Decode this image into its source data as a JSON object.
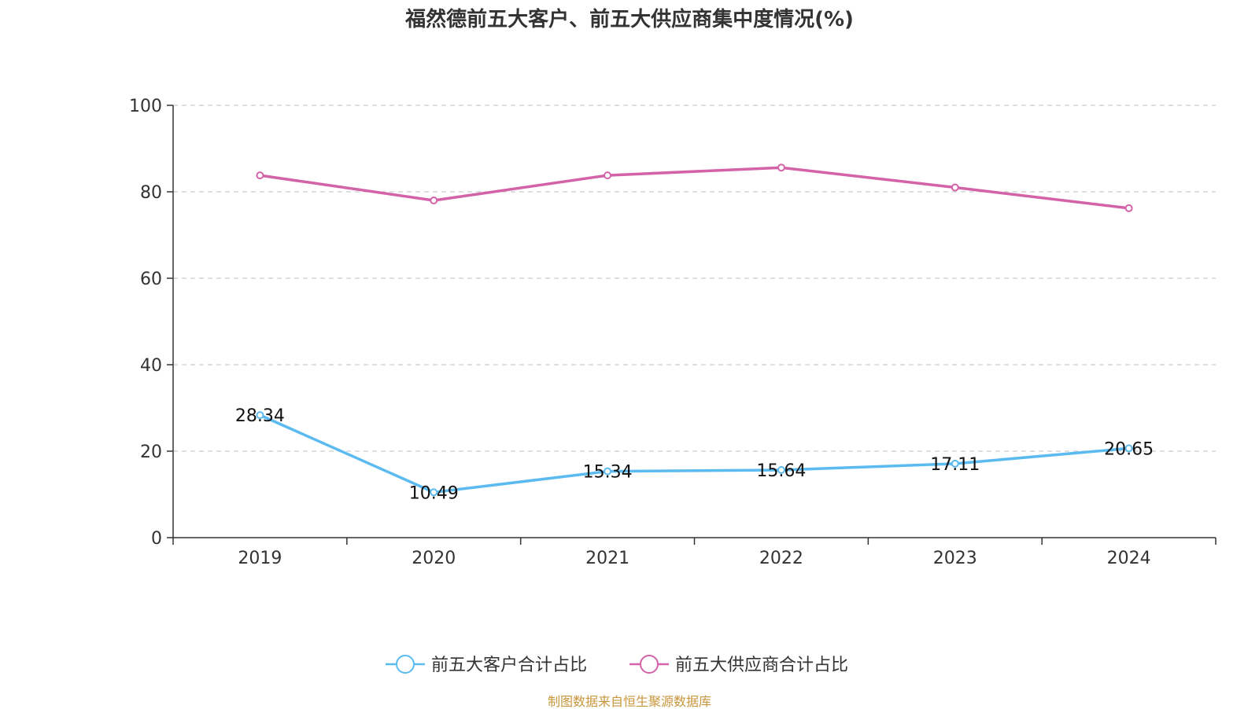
{
  "title": "福然德前五大客户、前五大供应商集中度情况(%)",
  "source": "制图数据来自恒生聚源数据库",
  "chart_data": {
    "type": "line",
    "title": "福然德前五大客户、前五大供应商集中度情况(%)",
    "categories": [
      "2019",
      "2020",
      "2021",
      "2022",
      "2023",
      "2024"
    ],
    "y_ticks": [
      "0",
      "20",
      "40",
      "60",
      "80",
      "100"
    ],
    "ylim": [
      0,
      100
    ],
    "grid": true,
    "legend_position": "bottom",
    "series": [
      {
        "name": "前五大客户合计占比",
        "color": "#5bbbf0",
        "values": [
          28.34,
          10.49,
          15.34,
          15.64,
          17.11,
          20.65
        ],
        "labels": [
          "28.34",
          "10.49",
          "15.34",
          "15.64",
          "17.11",
          "20.65"
        ]
      },
      {
        "name": "前五大供应商合计占比",
        "color": "#d462a8",
        "values": [
          83.8,
          78.0,
          83.8,
          85.6,
          81.0,
          76.2
        ]
      }
    ]
  }
}
